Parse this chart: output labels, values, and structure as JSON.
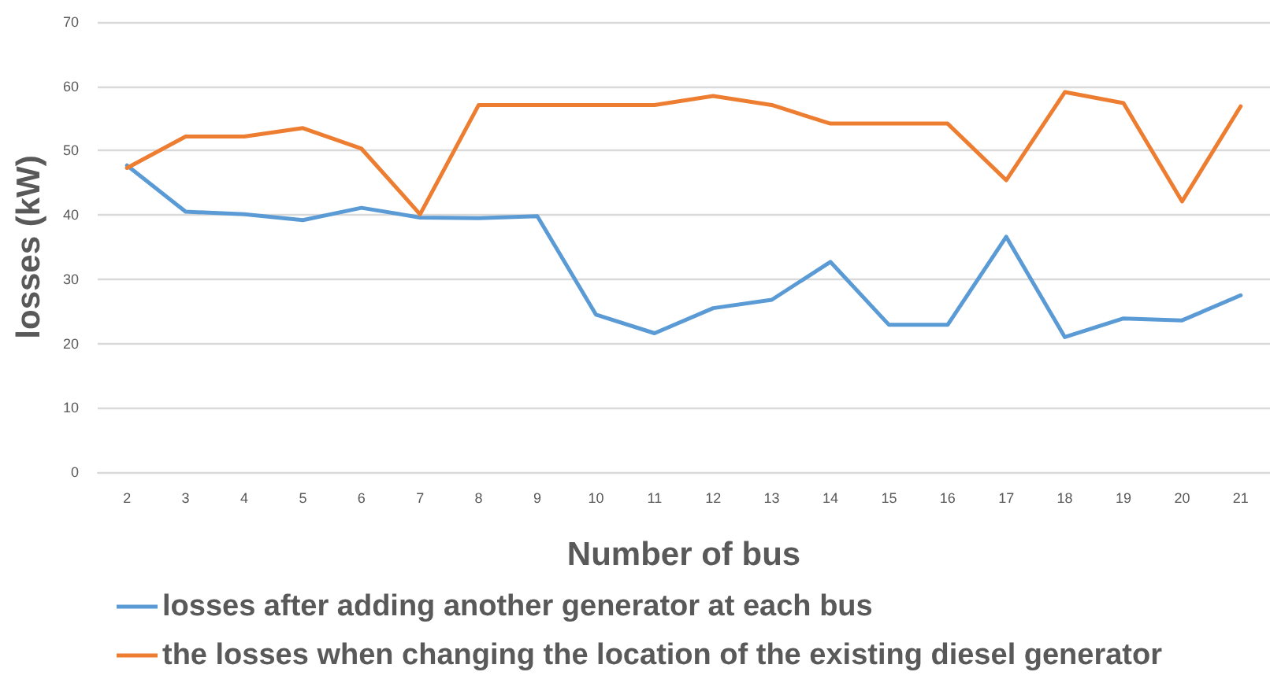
{
  "chart_data": {
    "type": "line",
    "xlabel": "Number of bus",
    "ylabel": "losses (kW)",
    "categories": [
      "2",
      "3",
      "4",
      "5",
      "6",
      "7",
      "8",
      "9",
      "10",
      "11",
      "12",
      "13",
      "14",
      "15",
      "16",
      "17",
      "18",
      "19",
      "20",
      "21"
    ],
    "series": [
      {
        "name": "losses after adding another generator at each bus",
        "color": "#5b9bd5",
        "values": [
          47.7,
          40.5,
          40.1,
          39.2,
          41.1,
          39.6,
          39.5,
          39.8,
          24.5,
          21.6,
          25.5,
          26.8,
          32.7,
          22.9,
          22.9,
          36.6,
          21.0,
          23.9,
          23.6,
          27.5
        ]
      },
      {
        "name": "the losses when changing the location of the existing diesel generator",
        "color": "#ed7d31",
        "values": [
          47.3,
          52.2,
          52.2,
          53.5,
          50.3,
          40.1,
          57.1,
          57.1,
          57.1,
          57.1,
          58.5,
          57.1,
          54.2,
          54.2,
          54.2,
          45.4,
          59.1,
          57.4,
          42.1,
          56.9
        ]
      }
    ],
    "ylim": [
      0,
      70
    ],
    "yticks": [
      0,
      10,
      20,
      30,
      40,
      50,
      60,
      70
    ],
    "grid": "y",
    "legend": "bottom",
    "marker": "none",
    "line_style": "solid"
  }
}
